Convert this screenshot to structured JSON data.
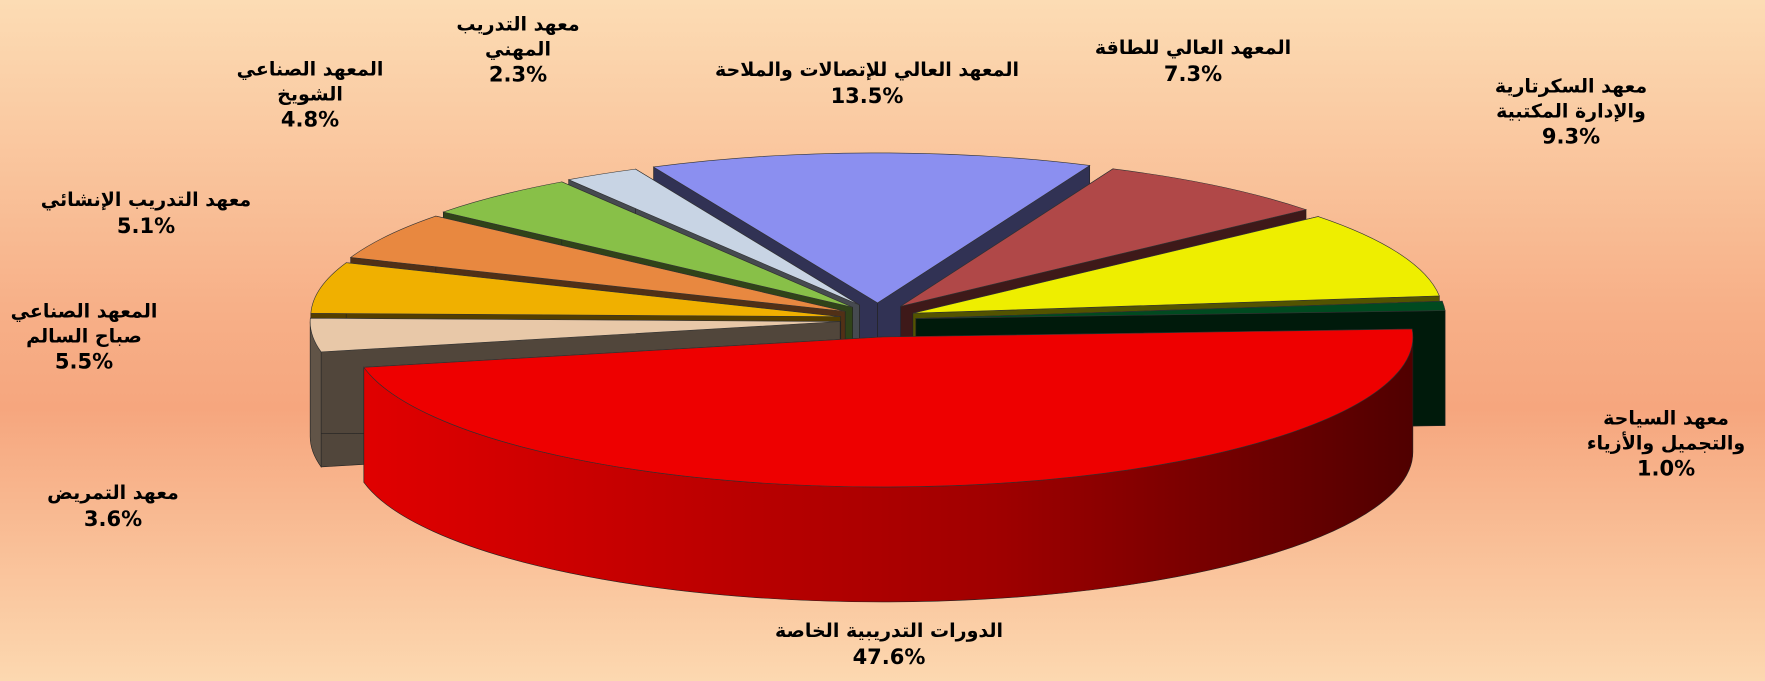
{
  "chart_data": {
    "type": "pie3d",
    "categories": [
      "المعهد العالي للإتصالات والملاحة",
      "المعهد العالي للطاقة",
      "معهد السكرتارية\nوالإدارة المكتبية",
      "معهد السياحة\nوالتجميل والأزياء",
      "الدورات التدريبية الخاصة",
      "معهد التمريض",
      "المعهد الصناعي\nصباح السالم",
      "معهد التدريب الإنشائي",
      "المعهد الصناعي\nالشويخ",
      "معهد التدريب\nالمهني"
    ],
    "values": [
      13.5,
      7.3,
      9.3,
      1.0,
      47.6,
      3.6,
      5.5,
      5.1,
      4.8,
      2.3
    ],
    "value_labels": [
      "13.5%",
      "7.3%",
      "9.3%",
      "1.0%",
      "47.6%",
      "3.6%",
      "5.5%",
      "5.1%",
      "4.8%",
      "2.3%"
    ],
    "colors": [
      "#8b8ff0",
      "#b04848",
      "#eeee00",
      "#004a20",
      "#ee0000",
      "#e8c8a8",
      "#f0b000",
      "#e88840",
      "#88c048",
      "#c8d4e4"
    ]
  }
}
